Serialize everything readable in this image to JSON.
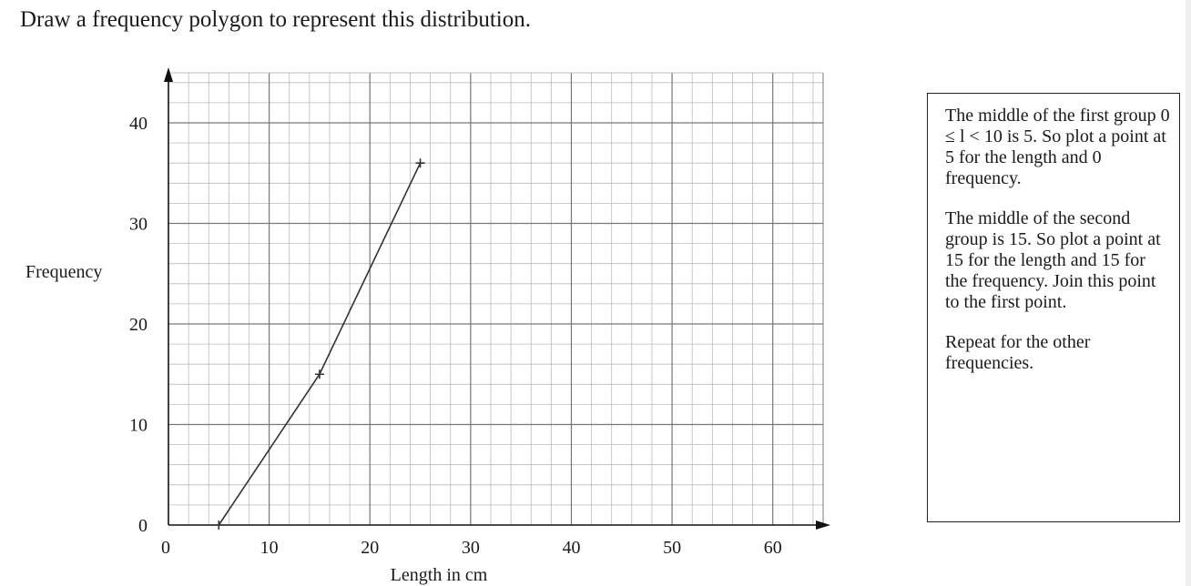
{
  "question": "Draw a frequency polygon to represent this distribution.",
  "hints": [
    "The middle of the first group 0 ≤ l < 10 is 5. So plot a point at  5 for the length and 0 frequency.",
    "The middle of the second group is 15. So plot a point at 15 for the length and 15 for the frequency. Join this point to the first point.",
    "Repeat for the other frequencies."
  ],
  "chart_data": {
    "type": "line",
    "xlabel": "Length in cm",
    "ylabel": "Frequency",
    "xlim": [
      0,
      65
    ],
    "ylim": [
      0,
      45
    ],
    "xticks": [
      0,
      10,
      20,
      30,
      40,
      50,
      60
    ],
    "yticks": [
      0,
      10,
      20,
      30,
      40
    ],
    "grid": true,
    "minor_grid_step": 2,
    "series": [
      {
        "x": [
          5,
          15,
          25
        ],
        "y": [
          0,
          15,
          36
        ],
        "marker": "+"
      }
    ],
    "colors": {
      "line": "#333333",
      "grid_major": "#777777",
      "grid_minor": "#bbbbbb",
      "axis": "#111111"
    }
  }
}
